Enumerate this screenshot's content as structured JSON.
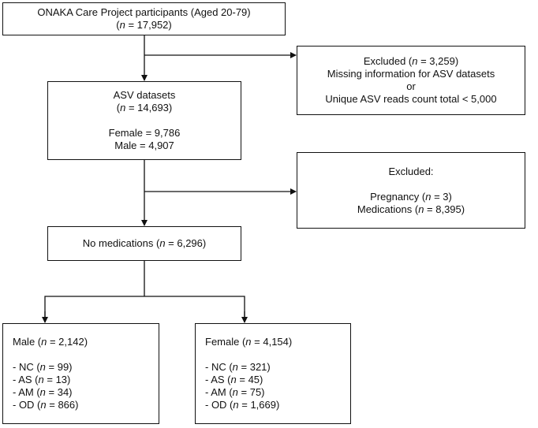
{
  "boxes": [
    {
      "paragraphs": [
        [
          [
            "ONAKA Care Project participants (Aged 20-79)"
          ],
          [
            "(",
            "n",
            " = 17,952)"
          ]
        ]
      ]
    },
    {
      "paragraphs": [
        [
          [
            "Excluded (",
            "n",
            " = 3,259)"
          ],
          [
            "Missing information for ASV datasets"
          ],
          [
            "or"
          ],
          [
            "Unique ASV reads count total < 5,000"
          ]
        ]
      ]
    },
    {
      "paragraphs": [
        [
          [
            "ASV datasets"
          ],
          [
            "(",
            "n",
            " = 14,693)"
          ]
        ],
        [
          [
            "Female = 9,786"
          ],
          [
            "Male = 4,907"
          ]
        ]
      ]
    },
    {
      "paragraphs": [
        [
          [
            "Excluded:"
          ]
        ],
        [
          [
            "Pregnancy (",
            "n",
            " = 3)"
          ],
          [
            "Medications (",
            "n",
            " = 8,395)"
          ]
        ]
      ]
    },
    {
      "paragraphs": [
        [
          [
            "No medications (",
            "n",
            " = 6,296)"
          ]
        ]
      ]
    },
    {
      "paragraphs": [
        [
          [
            "Male (",
            "n",
            " = 2,142)"
          ]
        ],
        [
          [
            "- NC (",
            "n",
            " = 99)"
          ],
          [
            "- AS (",
            "n",
            " = 13)"
          ],
          [
            "- AM (",
            "n",
            " = 34)"
          ],
          [
            "- OD (",
            "n",
            " = 866)"
          ]
        ]
      ]
    },
    {
      "paragraphs": [
        [
          [
            "Female (",
            "n",
            " = 4,154)"
          ]
        ],
        [
          [
            "- NC (",
            "n",
            " = 321)"
          ],
          [
            "- AS (",
            "n",
            " = 45)"
          ],
          [
            "- AM (",
            "n",
            " = 75)"
          ],
          [
            "- OD (",
            "n",
            " = 1,669)"
          ]
        ]
      ]
    }
  ]
}
